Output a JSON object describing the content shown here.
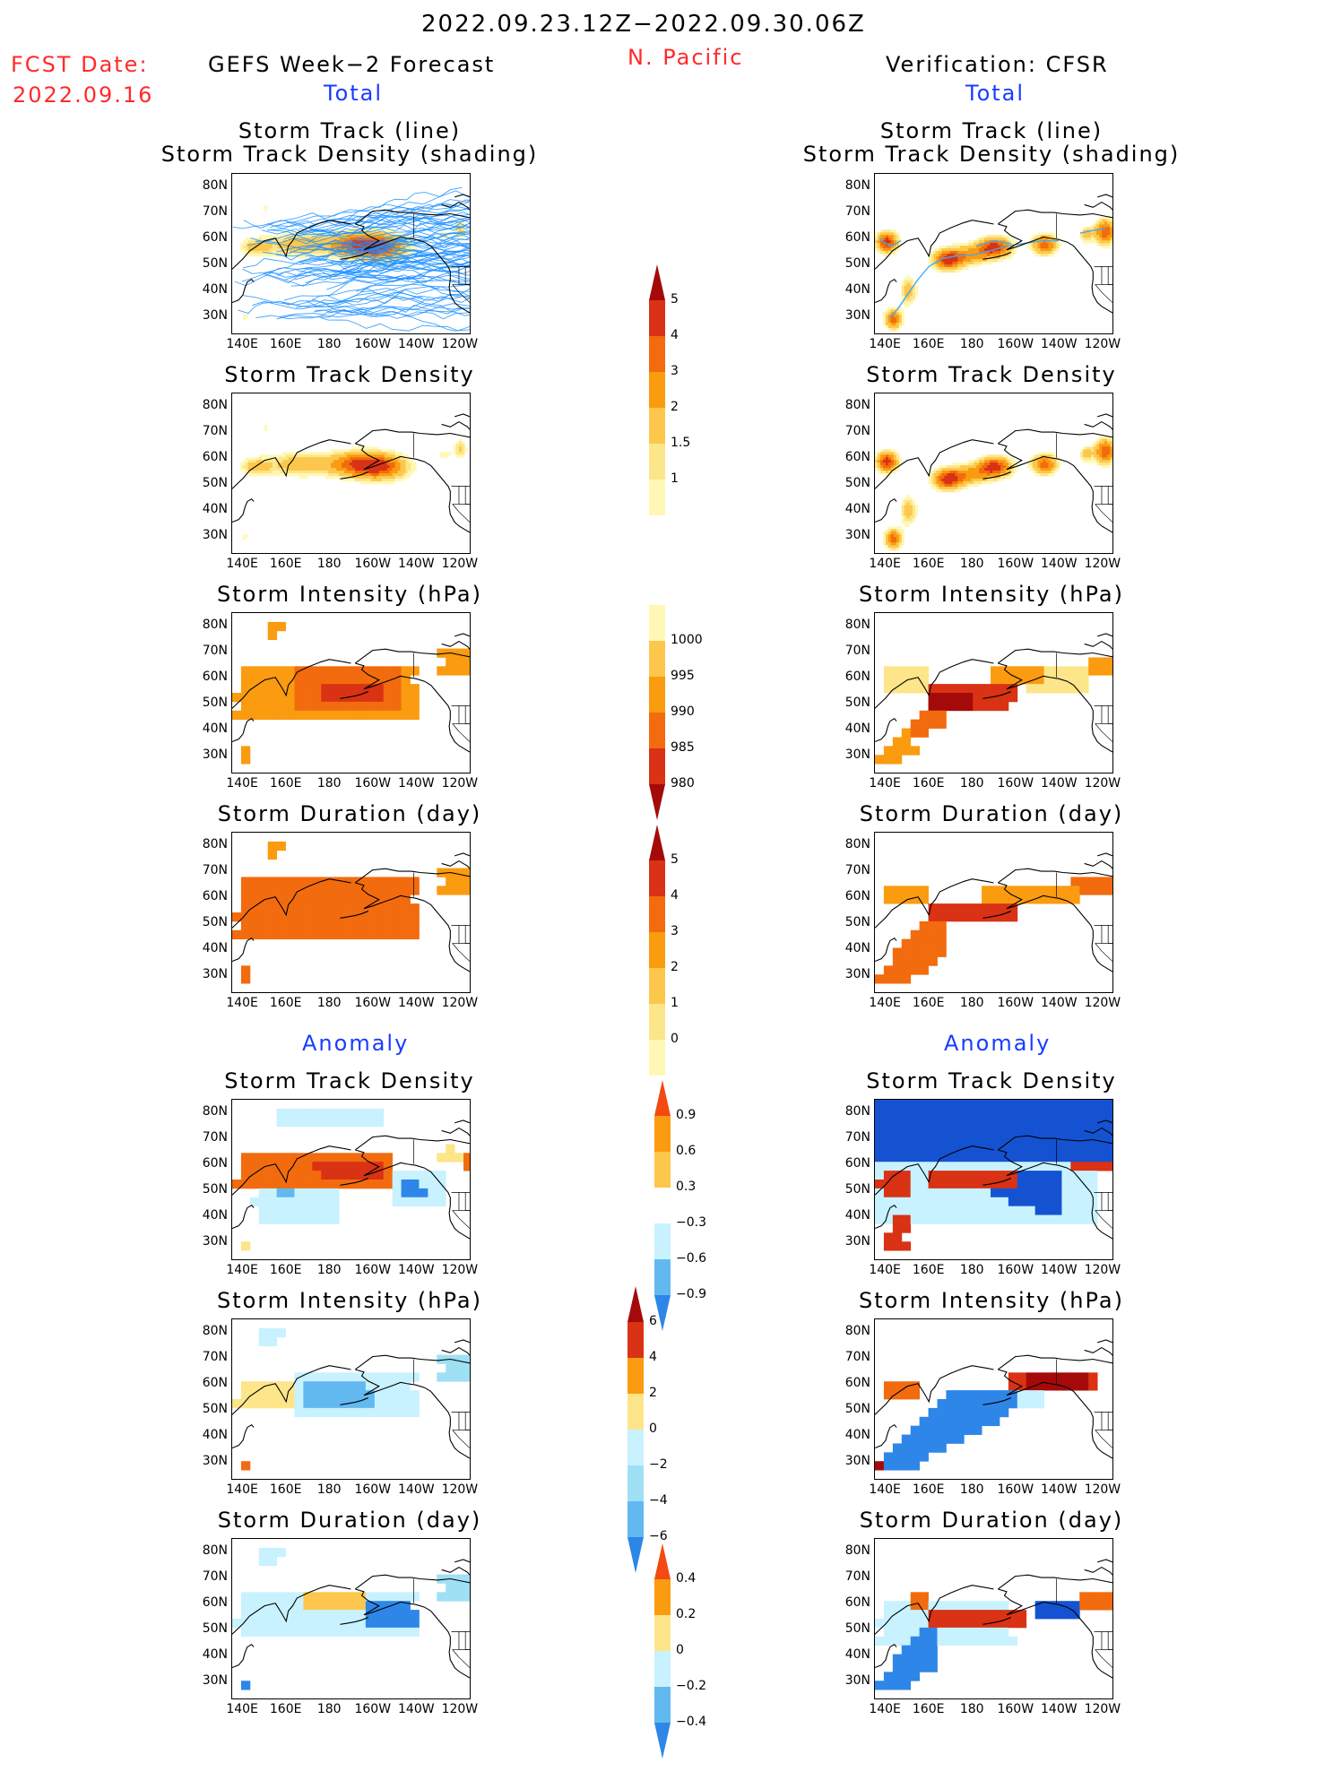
{
  "header": {
    "date_range": "2022.09.23.12Z−2022.09.30.06Z",
    "region": "N. Pacific",
    "fcst_label": "FCST Date:",
    "fcst_date": "2022.09.16",
    "left_title": "GEFS Week−2 Forecast",
    "right_title": "Verification: CFSR",
    "total_label": "Total",
    "anomaly_label": "Anomaly"
  },
  "panel_titles": {
    "track_line": "Storm Track (line)",
    "track_density_shading": "Storm Track Density (shading)",
    "track_density": "Storm Track Density",
    "intensity": "Storm Intensity (hPa)",
    "duration": "Storm Duration (day)"
  },
  "axes": {
    "lat_labels": [
      "80N",
      "70N",
      "60N",
      "50N",
      "40N",
      "30N"
    ],
    "lon_labels": [
      "140E",
      "160E",
      "180",
      "160W",
      "140W",
      "120W"
    ]
  },
  "colorbars": {
    "density_total": [
      "1",
      "1.5",
      "2",
      "3",
      "4",
      "5"
    ],
    "intensity_total": [
      "980",
      "985",
      "990",
      "995",
      "1000"
    ],
    "duration_total": [
      "0",
      "1",
      "2",
      "3",
      "4",
      "5"
    ],
    "density_anom": [
      "−0.9",
      "−0.6",
      "−0.3",
      "0.3",
      "0.6",
      "0.9"
    ],
    "intensity_anom": [
      "−6",
      "−4",
      "−2",
      "0",
      "2",
      "4",
      "6"
    ],
    "duration_anom": [
      "−0.4",
      "−0.2",
      "0",
      "0.2",
      "0.4"
    ]
  },
  "palette": {
    "warm": [
      "#fff8b4",
      "#fde58a",
      "#fcc74c",
      "#fa9b10",
      "#f26b0e",
      "#d93214",
      "#a50a0a"
    ],
    "cool": [
      "#c8f2ff",
      "#9fe0f5",
      "#62b9f0",
      "#2e86e8",
      "#1452d2"
    ],
    "track": "#1e90ff",
    "coast": "#000000"
  }
}
